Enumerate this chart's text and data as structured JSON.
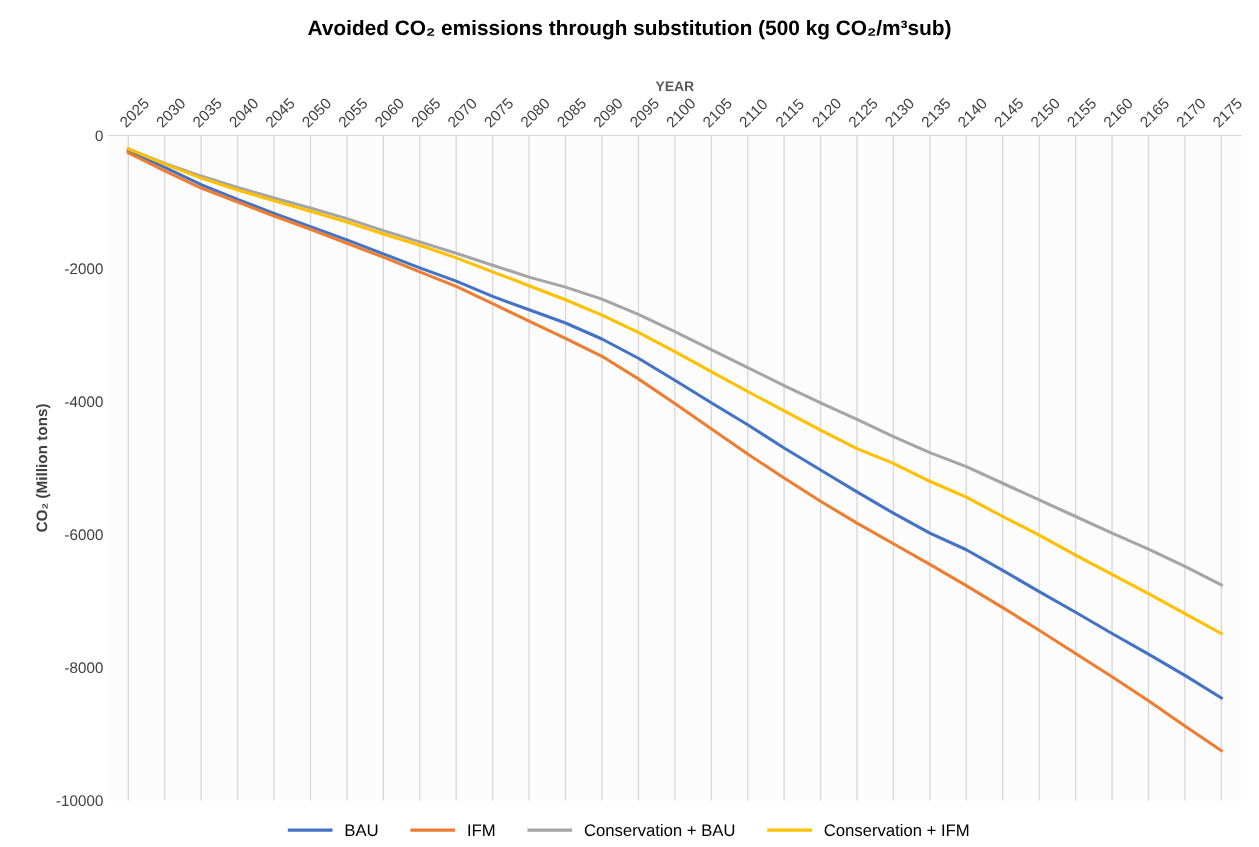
{
  "chart_data": {
    "type": "line",
    "title": "Avoided CO₂ emissions through substitution (500 kg CO₂/m³sub)",
    "xlabel": "YEAR",
    "ylabel": "CO₂ (Million tons)",
    "categories": [
      "2025",
      "2030",
      "2035",
      "2040",
      "2045",
      "2050",
      "2055",
      "2060",
      "2065",
      "2070",
      "2075",
      "2080",
      "2085",
      "2090",
      "2095",
      "2100",
      "2105",
      "2110",
      "2115",
      "2120",
      "2125",
      "2130",
      "2135",
      "2140",
      "2145",
      "2150",
      "2155",
      "2160",
      "2165",
      "2170",
      "2175"
    ],
    "series": [
      {
        "name": "BAU",
        "color": "#4472c4",
        "values": [
          -230,
          -480,
          -740,
          -960,
          -1170,
          -1370,
          -1570,
          -1780,
          -1990,
          -2190,
          -2420,
          -2620,
          -2820,
          -3060,
          -3350,
          -3680,
          -4020,
          -4350,
          -4700,
          -5030,
          -5360,
          -5680,
          -5980,
          -6230,
          -6540,
          -6860,
          -7170,
          -7490,
          -7800,
          -8120,
          -8460
        ]
      },
      {
        "name": "IFM",
        "color": "#ed7d31",
        "values": [
          -260,
          -530,
          -790,
          -1000,
          -1210,
          -1410,
          -1620,
          -1830,
          -2050,
          -2270,
          -2530,
          -2790,
          -3050,
          -3320,
          -3660,
          -4030,
          -4410,
          -4790,
          -5150,
          -5500,
          -5830,
          -6140,
          -6450,
          -6770,
          -7100,
          -7440,
          -7790,
          -8140,
          -8500,
          -8880,
          -9250
        ]
      },
      {
        "name": "Conservation + BAU",
        "color": "#a5a5a5",
        "values": [
          -200,
          -420,
          -610,
          -780,
          -940,
          -1090,
          -1250,
          -1430,
          -1600,
          -1770,
          -1950,
          -2130,
          -2280,
          -2460,
          -2690,
          -2950,
          -3220,
          -3490,
          -3760,
          -4020,
          -4270,
          -4530,
          -4770,
          -4980,
          -5230,
          -5480,
          -5730,
          -5980,
          -6220,
          -6480,
          -6760
        ]
      },
      {
        "name": "Conservation + IFM",
        "color": "#ffc000",
        "values": [
          -200,
          -430,
          -640,
          -820,
          -980,
          -1140,
          -1300,
          -1480,
          -1650,
          -1840,
          -2050,
          -2260,
          -2470,
          -2700,
          -2960,
          -3250,
          -3550,
          -3850,
          -4140,
          -4430,
          -4710,
          -4930,
          -5200,
          -5440,
          -5730,
          -6010,
          -6310,
          -6600,
          -6890,
          -7190,
          -7490
        ]
      }
    ],
    "ylim": [
      -10000,
      0
    ],
    "yticks": [
      {
        "value": 0,
        "label": "0"
      },
      {
        "value": -2000,
        "label": "-2000"
      },
      {
        "value": -4000,
        "label": "-4000"
      },
      {
        "value": -6000,
        "label": "-6000"
      },
      {
        "value": -8000,
        "label": "-8000"
      },
      {
        "value": -10000,
        "label": "-10000"
      }
    ],
    "grid": "x",
    "legend": "bottom",
    "marker": "none",
    "line_style": "solid"
  }
}
